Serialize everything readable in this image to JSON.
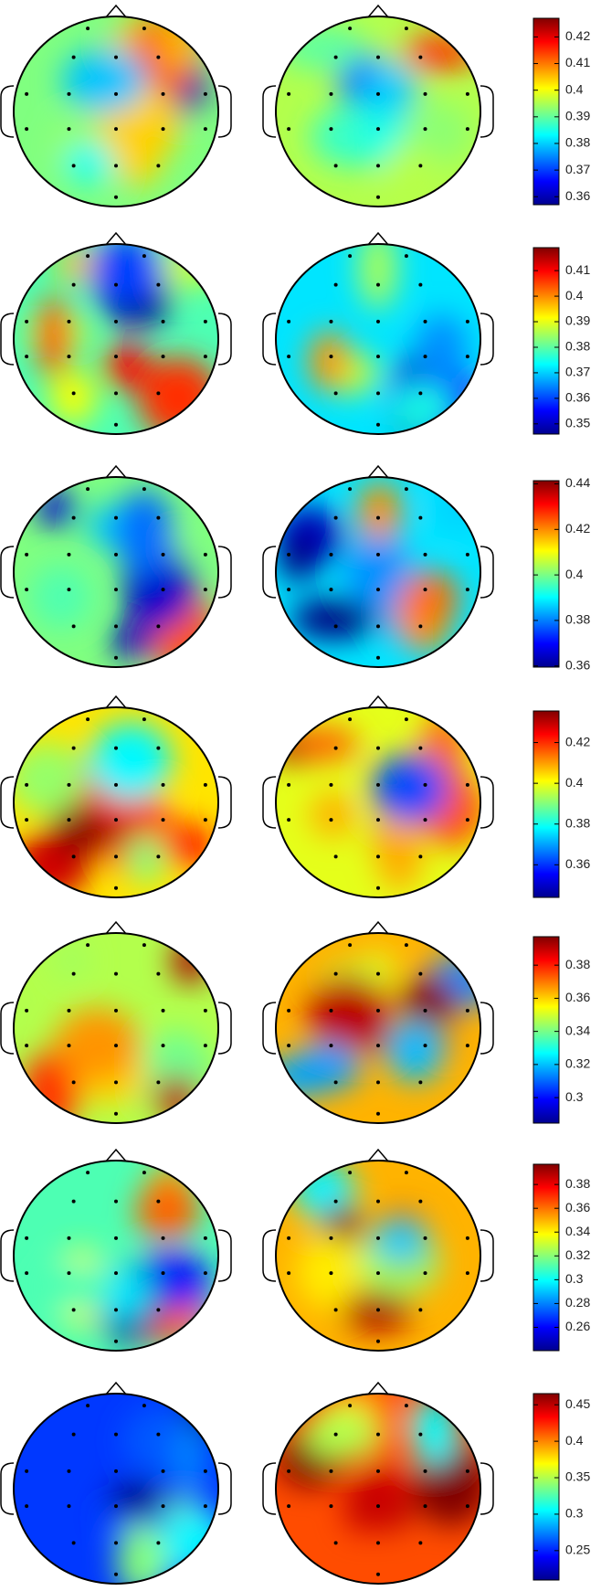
{
  "chart_data": [
    {
      "type": "topomap",
      "clim": [
        0.357,
        0.427
      ],
      "cticks": [
        0.36,
        0.37,
        0.38,
        0.39,
        0.4,
        0.41,
        0.42
      ]
    },
    {
      "type": "topomap",
      "clim": [
        0.346,
        0.419
      ],
      "cticks": [
        0.35,
        0.36,
        0.37,
        0.38,
        0.39,
        0.4,
        0.41
      ]
    },
    {
      "type": "topomap",
      "clim": [
        0.3595,
        0.4414
      ],
      "cticks": [
        0.36,
        0.38,
        0.4,
        0.42,
        0.44
      ]
    },
    {
      "type": "topomap",
      "clim": [
        0.344,
        0.4355
      ],
      "cticks": [
        0.36,
        0.38,
        0.4,
        0.42
      ]
    },
    {
      "type": "topomap",
      "clim": [
        0.2846,
        0.3972
      ],
      "cticks": [
        0.3,
        0.32,
        0.34,
        0.36,
        0.38
      ]
    },
    {
      "type": "topomap",
      "clim": [
        0.2404,
        0.397
      ],
      "cticks": [
        0.26,
        0.28,
        0.3,
        0.32,
        0.34,
        0.36,
        0.38
      ]
    },
    {
      "type": "topomap",
      "clim": [
        0.2097,
        0.4653
      ],
      "cticks": [
        0.25,
        0.3,
        0.35,
        0.4,
        0.45
      ]
    }
  ]
}
